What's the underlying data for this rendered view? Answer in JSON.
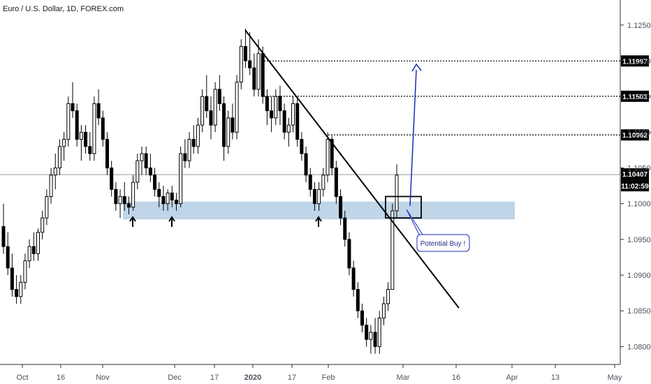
{
  "chart_data": {
    "type": "candlestick",
    "title": "Euro / U.S. Dollar, 1D, FOREX.com",
    "ylim": [
      1.0775,
      1.1285
    ],
    "y_ticks": [
      "1.12500",
      "1.12000",
      "1.11500",
      "1.11000",
      "1.10500",
      "1.10000",
      "1.09500",
      "1.09000",
      "1.08500",
      "1.08000"
    ],
    "x_ticks": [
      "Oct",
      "16",
      "Nov",
      "Dec",
      "17",
      "2020",
      "17",
      "Feb",
      "Mar",
      "16",
      "Apr",
      "13",
      "May"
    ],
    "last_price": "1.10407",
    "countdown": "11:02:59",
    "resistance_levels": [
      "1.11997",
      "1.11503",
      "1.10962"
    ],
    "support_zone": [
      1.0978,
      1.1003
    ],
    "support_arrow_count": 3,
    "trendline": {
      "from": [
        1.1243
      ],
      "to": [
        1.0854
      ]
    },
    "breakout_box": [
      1.098,
      1.101
    ],
    "target_arrow_to": 1.1195,
    "annotation": "Potential Buy !",
    "colors": {
      "candle": "#000000",
      "zone": "#b8d0e6",
      "target_arrow": "#1a2bb8",
      "price_tag": "#000000",
      "note_border": "#1a2bb8"
    },
    "candles": [
      [
        1.0968,
        1.1,
        1.093,
        1.094
      ],
      [
        1.094,
        1.096,
        1.09,
        1.091
      ],
      [
        1.091,
        1.093,
        1.087,
        1.088
      ],
      [
        1.088,
        1.09,
        1.086,
        1.087
      ],
      [
        1.087,
        1.09,
        1.086,
        1.089
      ],
      [
        1.089,
        1.093,
        1.088,
        1.092
      ],
      [
        1.092,
        1.095,
        1.091,
        1.094
      ],
      [
        1.094,
        1.096,
        1.092,
        1.093
      ],
      [
        1.093,
        1.0965,
        1.092,
        1.096
      ],
      [
        1.096,
        1.099,
        1.095,
        1.098
      ],
      [
        1.098,
        1.102,
        1.097,
        1.101
      ],
      [
        1.101,
        1.105,
        1.1,
        1.104
      ],
      [
        1.104,
        1.107,
        1.102,
        1.105
      ],
      [
        1.105,
        1.109,
        1.104,
        1.108
      ],
      [
        1.108,
        1.11,
        1.106,
        1.109
      ],
      [
        1.109,
        1.115,
        1.108,
        1.114
      ],
      [
        1.114,
        1.117,
        1.112,
        1.113
      ],
      [
        1.113,
        1.114,
        1.108,
        1.109
      ],
      [
        1.109,
        1.111,
        1.106,
        1.11
      ],
      [
        1.11,
        1.111,
        1.107,
        1.108
      ],
      [
        1.108,
        1.11,
        1.106,
        1.107
      ],
      [
        1.107,
        1.115,
        1.106,
        1.114
      ],
      [
        1.114,
        1.116,
        1.111,
        1.112
      ],
      [
        1.112,
        1.113,
        1.108,
        1.109
      ],
      [
        1.109,
        1.11,
        1.104,
        1.105
      ],
      [
        1.105,
        1.106,
        1.101,
        1.102
      ],
      [
        1.102,
        1.103,
        1.099,
        1.1
      ],
      [
        1.1,
        1.102,
        1.098,
        1.101
      ],
      [
        1.101,
        1.103,
        1.099,
        1.1
      ],
      [
        1.1,
        1.101,
        1.0985,
        1.0995
      ],
      [
        1.0995,
        1.104,
        1.099,
        1.103
      ],
      [
        1.103,
        1.107,
        1.102,
        1.106
      ],
      [
        1.106,
        1.108,
        1.104,
        1.107
      ],
      [
        1.107,
        1.108,
        1.104,
        1.105
      ],
      [
        1.105,
        1.107,
        1.103,
        1.104
      ],
      [
        1.104,
        1.105,
        1.101,
        1.102
      ],
      [
        1.102,
        1.103,
        1.0995,
        1.101
      ],
      [
        1.101,
        1.1025,
        1.099,
        1.1
      ],
      [
        1.1,
        1.102,
        1.099,
        1.1015
      ],
      [
        1.1015,
        1.1025,
        1.0995,
        1.1005
      ],
      [
        1.1005,
        1.1015,
        1.099,
        1.1
      ],
      [
        1.1,
        1.108,
        1.0995,
        1.107
      ],
      [
        1.107,
        1.109,
        1.105,
        1.106
      ],
      [
        1.106,
        1.11,
        1.105,
        1.109
      ],
      [
        1.109,
        1.111,
        1.107,
        1.108
      ],
      [
        1.108,
        1.112,
        1.107,
        1.111
      ],
      [
        1.111,
        1.116,
        1.11,
        1.115
      ],
      [
        1.115,
        1.118,
        1.112,
        1.113
      ],
      [
        1.113,
        1.115,
        1.109,
        1.111
      ],
      [
        1.111,
        1.117,
        1.11,
        1.116
      ],
      [
        1.116,
        1.118,
        1.113,
        1.114
      ],
      [
        1.114,
        1.115,
        1.106,
        1.108
      ],
      [
        1.108,
        1.113,
        1.107,
        1.112
      ],
      [
        1.112,
        1.114,
        1.109,
        1.11
      ],
      [
        1.11,
        1.118,
        1.109,
        1.117
      ],
      [
        1.117,
        1.123,
        1.116,
        1.122
      ],
      [
        1.122,
        1.1245,
        1.119,
        1.12
      ],
      [
        1.12,
        1.124,
        1.118,
        1.119
      ],
      [
        1.119,
        1.121,
        1.115,
        1.116
      ],
      [
        1.116,
        1.123,
        1.115,
        1.121
      ],
      [
        1.121,
        1.122,
        1.114,
        1.115
      ],
      [
        1.115,
        1.116,
        1.111,
        1.113
      ],
      [
        1.113,
        1.115,
        1.11,
        1.112
      ],
      [
        1.112,
        1.116,
        1.111,
        1.115
      ],
      [
        1.115,
        1.1165,
        1.111,
        1.113
      ],
      [
        1.113,
        1.114,
        1.109,
        1.11
      ],
      [
        1.11,
        1.112,
        1.108,
        1.111
      ],
      [
        1.111,
        1.115,
        1.11,
        1.114
      ],
      [
        1.114,
        1.115,
        1.108,
        1.109
      ],
      [
        1.109,
        1.11,
        1.106,
        1.107
      ],
      [
        1.107,
        1.108,
        1.103,
        1.104
      ],
      [
        1.104,
        1.105,
        1.101,
        1.102
      ],
      [
        1.102,
        1.103,
        1.099,
        1.1
      ],
      [
        1.1,
        1.103,
        1.099,
        1.102
      ],
      [
        1.102,
        1.105,
        1.101,
        1.104
      ],
      [
        1.104,
        1.11,
        1.103,
        1.109
      ],
      [
        1.109,
        1.1095,
        1.104,
        1.105
      ],
      [
        1.105,
        1.106,
        1.1,
        1.101
      ],
      [
        1.101,
        1.102,
        1.097,
        1.098
      ],
      [
        1.098,
        1.099,
        1.094,
        1.095
      ],
      [
        1.095,
        1.096,
        1.09,
        1.091
      ],
      [
        1.091,
        1.092,
        1.087,
        1.088
      ],
      [
        1.088,
        1.089,
        1.084,
        1.085
      ],
      [
        1.085,
        1.086,
        1.082,
        1.083
      ],
      [
        1.083,
        1.084,
        1.08,
        1.081
      ],
      [
        1.081,
        1.083,
        1.079,
        1.082
      ],
      [
        1.082,
        1.084,
        1.079,
        1.08
      ],
      [
        1.08,
        1.085,
        1.079,
        1.084
      ],
      [
        1.084,
        1.087,
        1.083,
        1.086
      ],
      [
        1.086,
        1.089,
        1.085,
        1.088
      ],
      [
        1.088,
        1.1,
        1.088,
        1.099
      ],
      [
        1.099,
        1.1055,
        1.098,
        1.104
      ]
    ]
  }
}
